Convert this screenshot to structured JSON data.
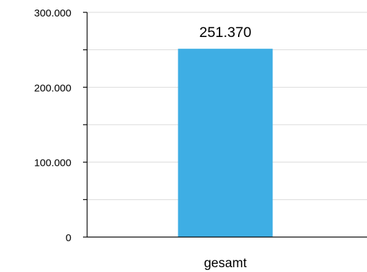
{
  "chart_data": {
    "type": "bar",
    "categories": [
      "gesamt"
    ],
    "values": [
      251370
    ],
    "data_labels": [
      "251.370"
    ],
    "title": "",
    "xlabel": "",
    "ylabel": "",
    "ylim": [
      0,
      300000
    ],
    "y_ticks": [
      0,
      100000,
      200000,
      300000
    ],
    "y_tick_labels": [
      "0",
      "100.000",
      "200.000",
      "300.000"
    ],
    "y_minor_step": 50000,
    "grid": true,
    "legend": "none",
    "bar_color": "#3eaee4",
    "grid_color": "#d9d9d9",
    "axis_color": "#000000"
  }
}
